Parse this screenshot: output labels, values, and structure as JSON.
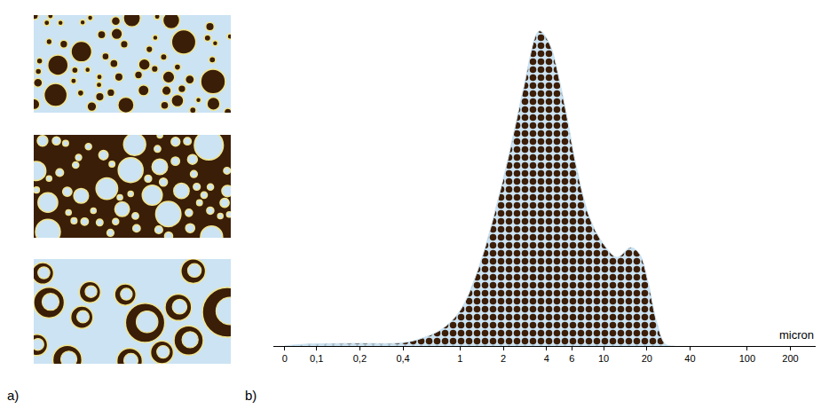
{
  "panel_labels": [
    "a)",
    "b)"
  ],
  "chart_data": {
    "type": "area",
    "x_label": "micron",
    "x": [
      0.06,
      0.08,
      0.18,
      0.4,
      0.57,
      0.76,
      1,
      1.35,
      2,
      2.75,
      3.4,
      3.6,
      4.2,
      5.2,
      6.5,
      8,
      10,
      12.4,
      15.4,
      17.8,
      20.5,
      23.5,
      27,
      31
    ],
    "values": [
      0,
      0.005,
      0.008,
      0.01,
      0.027,
      0.054,
      0.108,
      0.24,
      0.51,
      0.78,
      0.95,
      0.96,
      0.92,
      0.76,
      0.54,
      0.39,
      0.31,
      0.27,
      0.3,
      0.28,
      0.19,
      0.07,
      0.005,
      0
    ],
    "color": "#cbe3f3",
    "log": "x",
    "xlim": [
      0.05,
      300
    ],
    "ylim": [
      0,
      1
    ],
    "xticks": [
      {
        "value": 0.06,
        "label": "0"
      },
      {
        "value": 0.1,
        "label": "0,1"
      },
      {
        "value": 0.2,
        "label": "0,2"
      },
      {
        "value": 0.4,
        "label": "0,4"
      },
      1,
      2,
      4,
      6,
      10,
      20,
      40,
      100,
      200
    ],
    "grid": false,
    "tick_labels": "x"
  }
}
